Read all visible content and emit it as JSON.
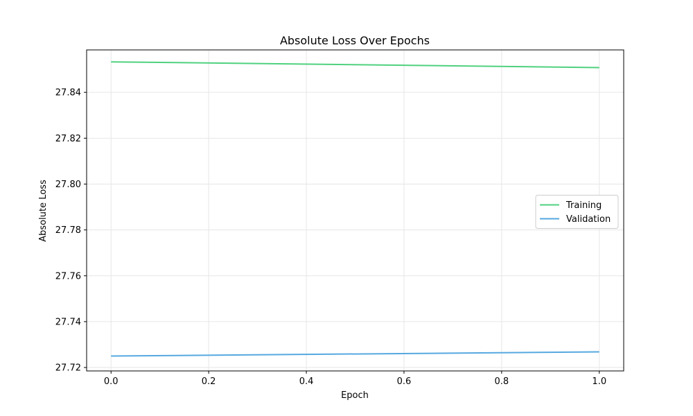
{
  "chart_data": {
    "type": "line",
    "title": "Absolute Loss Over Epochs",
    "xlabel": "Epoch",
    "ylabel": "Absolute Loss",
    "xlim": [
      -0.05,
      1.05
    ],
    "ylim": [
      27.7185,
      27.8585
    ],
    "xticks": [
      0.0,
      0.2,
      0.4,
      0.6,
      0.8,
      1.0
    ],
    "xtick_labels": [
      "0.0",
      "0.2",
      "0.4",
      "0.6",
      "0.8",
      "1.0"
    ],
    "yticks": [
      27.72,
      27.74,
      27.76,
      27.78,
      27.8,
      27.82,
      27.84
    ],
    "ytick_labels": [
      "27.72",
      "27.74",
      "27.76",
      "27.78",
      "27.80",
      "27.82",
      "27.84"
    ],
    "grid": true,
    "legend_position": "center-right",
    "x": [
      0,
      1
    ],
    "series": [
      {
        "name": "Training",
        "values": [
          27.8533,
          27.8508
        ],
        "color": "#4fd17e"
      },
      {
        "name": "Validation",
        "values": [
          27.725,
          27.7268
        ],
        "color": "#55a8e0"
      }
    ]
  }
}
